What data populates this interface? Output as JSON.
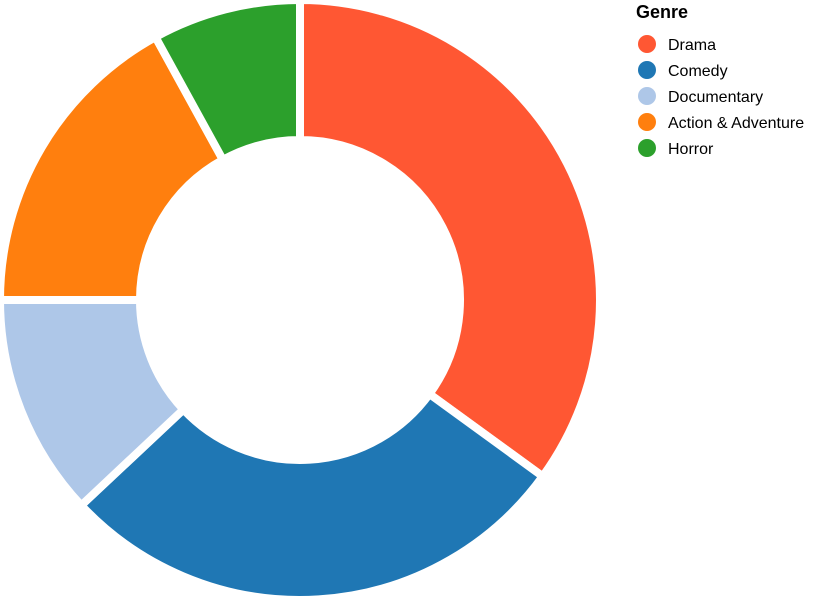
{
  "chart_data": {
    "type": "pie",
    "variant": "donut",
    "legend": {
      "title": "Genre",
      "placement": "top-right"
    },
    "categories": [
      "Drama",
      "Comedy",
      "Documentary",
      "Action & Adventure",
      "Horror"
    ],
    "values": [
      35,
      28,
      12,
      17,
      8
    ],
    "colors": [
      "#ff5733",
      "#1f77b4",
      "#aec7e8",
      "#ff7f0e",
      "#2ca02c"
    ],
    "slice_separator_color": "#ffffff"
  }
}
